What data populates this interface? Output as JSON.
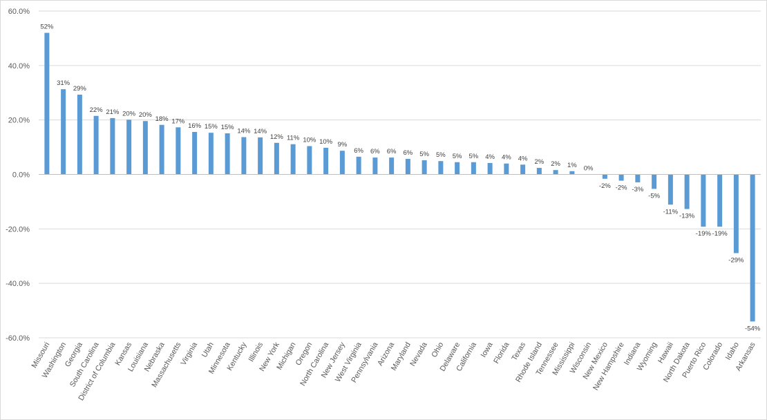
{
  "chart_data": {
    "type": "bar",
    "title": "",
    "xlabel": "",
    "ylabel": "",
    "ylim": [
      -60,
      60
    ],
    "ytick_step": 20,
    "ytick_format": "percent_1dp",
    "grid": "horizontal",
    "legend": "none",
    "bar_color": "#5b9bd5",
    "categories": [
      "Missouri",
      "Washington",
      "Georgia",
      "South Carolina",
      "District of Columbia",
      "Kansas",
      "Louisiana",
      "Nebraska",
      "Massachusetts",
      "Virginia",
      "Utah",
      "Minnesota",
      "Kentucky",
      "Illinois",
      "New York",
      "Michigan",
      "Oregon",
      "North Carolina",
      "New Jersey",
      "West Virginia",
      "Pennsylvania",
      "Arizona",
      "Maryland",
      "Nevada",
      "Ohio",
      "Delaware",
      "California",
      "Iowa",
      "Florida",
      "Texas",
      "Rhode Island",
      "Tennessee",
      "Mississippi",
      "Wisconsin",
      "New Mexico",
      "New Hampshire",
      "Indiana",
      "Wyoming",
      "Hawaii",
      "North Dakota",
      "Puerto Rico",
      "Colorado",
      "Idaho",
      "Arkansas"
    ],
    "values": [
      52,
      31.3,
      29.3,
      21.5,
      20.7,
      20.1,
      19.6,
      18.2,
      17.3,
      15.6,
      15.3,
      15.1,
      13.7,
      13.6,
      11.6,
      11.1,
      10.4,
      9.8,
      8.7,
      6.5,
      6.2,
      6.2,
      5.7,
      5.2,
      4.9,
      4.5,
      4.5,
      4.2,
      4.0,
      3.6,
      2.4,
      1.6,
      1.2,
      0,
      -1.6,
      -2.3,
      -2.9,
      -5.3,
      -11.1,
      -12.7,
      -19.2,
      -19.2,
      -28.9,
      -54
    ],
    "data_labels": [
      "52%",
      "31%",
      "29%",
      "22%",
      "21%",
      "20%",
      "20%",
      "18%",
      "17%",
      "16%",
      "15%",
      "15%",
      "14%",
      "14%",
      "12%",
      "11%",
      "10%",
      "10%",
      "9%",
      "6%",
      "6%",
      "6%",
      "6%",
      "5%",
      "5%",
      "5%",
      "5%",
      "4%",
      "4%",
      "4%",
      "2%",
      "2%",
      "1%",
      "0%",
      "-2%",
      "-2%",
      "-3%",
      "-5%",
      "-11%",
      "-13%",
      "-19%",
      "-19%",
      "-29%",
      "-54%"
    ]
  }
}
